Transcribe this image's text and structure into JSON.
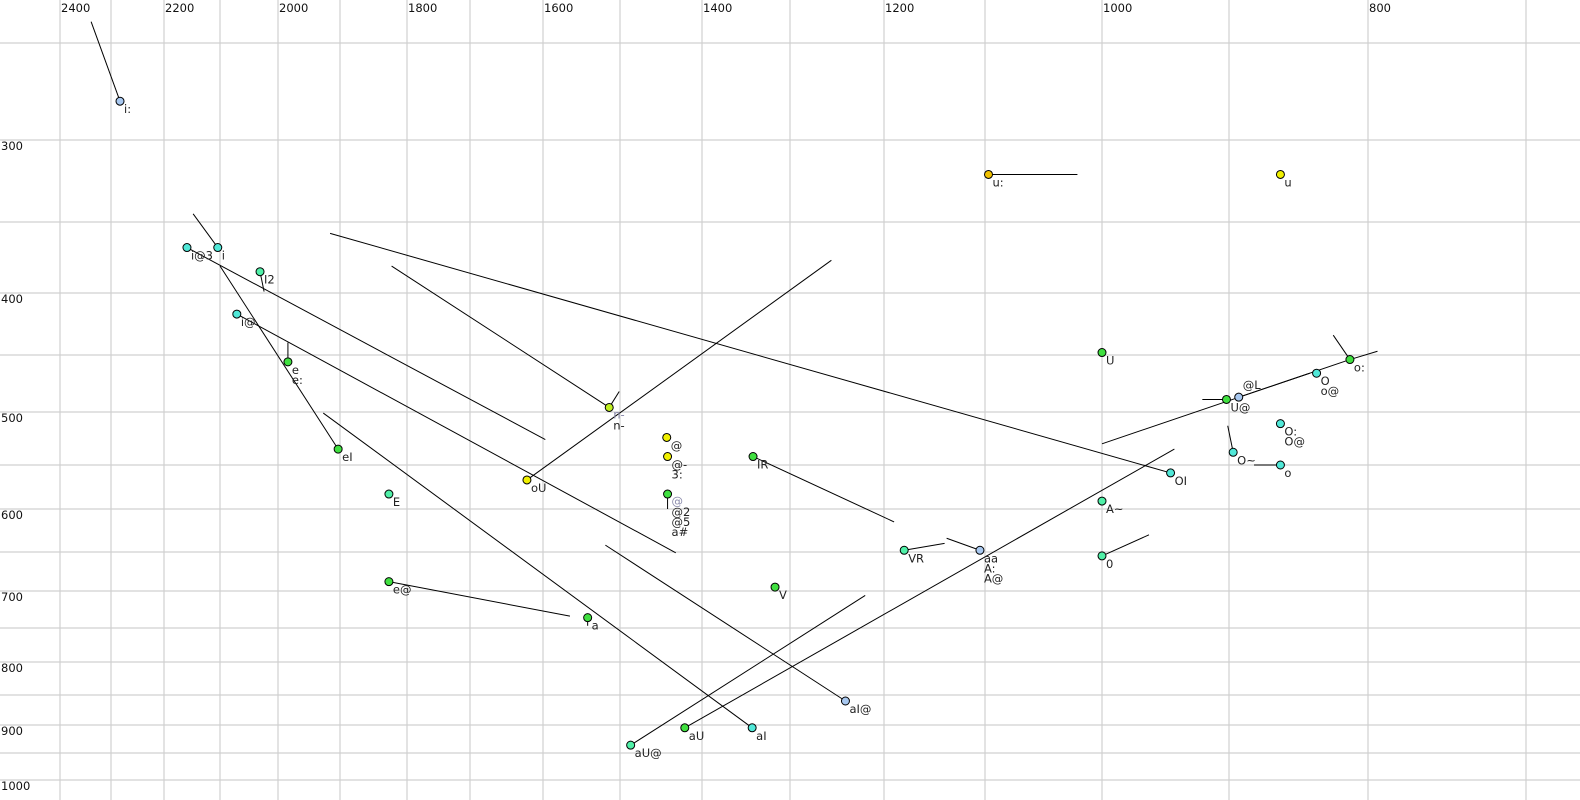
{
  "chart_data": {
    "type": "scatter",
    "title": "",
    "xlabel": "",
    "ylabel": "",
    "x_axis": {
      "reversed": true,
      "position": "top",
      "ticks": [
        2400,
        2200,
        2000,
        1800,
        1600,
        1400,
        1200,
        1000,
        800
      ],
      "grid": [
        2400,
        2300,
        2200,
        2100,
        2000,
        1900,
        1800,
        1700,
        1600,
        1500,
        1400,
        1300,
        1200,
        1100,
        1000,
        900,
        800,
        700
      ]
    },
    "y_axis": {
      "reversed": false,
      "position": "left",
      "ticks": [
        300,
        400,
        500,
        600,
        700,
        800,
        900,
        1000
      ],
      "grid": [
        250,
        300,
        350,
        400,
        450,
        500,
        550,
        600,
        650,
        700,
        750,
        800,
        850,
        900,
        950,
        1000
      ]
    },
    "grid": true,
    "colors": {
      "blue": "#a8c8f0",
      "cyan": "#50e8d8",
      "mint": "#50f0a8",
      "green": "#40e040",
      "lime": "#c0f020",
      "yellow": "#f0f000",
      "orange": "#f0c000"
    },
    "points": [
      {
        "labels": [
          "i:"
        ],
        "f2": 2283,
        "f1": 280,
        "color": "blue",
        "tails": [
          [
            2339,
            239
          ]
        ]
      },
      {
        "labels": [
          "i@3"
        ],
        "f2": 2159,
        "f1": 368,
        "color": "cyan",
        "tails": [
          [
            1597,
            526
          ]
        ]
      },
      {
        "labels": [
          "i"
        ],
        "f2": 2104,
        "f1": 368,
        "color": "cyan",
        "tails": [
          [
            2148,
            345
          ]
        ]
      },
      {
        "labels": [
          "I2"
        ],
        "f2": 2031,
        "f1": 385,
        "color": "mint",
        "tails": [
          [
            2024,
            399
          ]
        ]
      },
      {
        "labels": [
          "i@"
        ],
        "f2": 2071,
        "f1": 417,
        "color": "cyan",
        "tails": [
          [
            1432,
            651
          ]
        ]
      },
      {
        "labels": [
          "e",
          "e:"
        ],
        "f2": 1984,
        "f1": 456,
        "color": "green",
        "tails": [
          [
            1984,
            440
          ]
        ]
      },
      {
        "labels": [
          "eI"
        ],
        "f2": 1903,
        "f1": 535,
        "color": "green",
        "tails": [
          [
            2100,
            381
          ]
        ]
      },
      {
        "labels": [
          "E"
        ],
        "f2": 1827,
        "f1": 583,
        "color": "mint",
        "tails": []
      },
      {
        "labels": [
          "e@"
        ],
        "f2": 1827,
        "f1": 688,
        "color": "green",
        "tails": [
          [
            1565,
            734
          ]
        ]
      },
      {
        "labels": [
          "a"
        ],
        "f2": 1542,
        "f1": 736,
        "color": "green",
        "tails": [
          [
            1542,
            747
          ]
        ]
      },
      {
        "labels": [
          "aI"
        ],
        "f2": 1343,
        "f1": 905,
        "color": "cyan",
        "tails": [
          [
            1927,
            501
          ]
        ]
      },
      {
        "labels": [
          "oU"
        ],
        "f2": 1622,
        "f1": 567,
        "color": "yellow",
        "tails": [
          [
            1256,
            377
          ]
        ]
      },
      {
        "labels": [
          "n-"
        ],
        "ghost": [
          "n-"
        ],
        "f2": 1514,
        "f1": 496,
        "color": "lime",
        "tails": [
          [
            1501,
            482
          ],
          [
            1823,
            381
          ]
        ]
      },
      {
        "labels": [
          "@"
        ],
        "f2": 1443,
        "f1": 524,
        "color": "yellow",
        "tails": []
      },
      {
        "labels": [
          "@-",
          "3:"
        ],
        "f2": 1442,
        "f1": 542,
        "color": "yellow",
        "tails": []
      },
      {
        "labels": [
          "@2",
          "@5",
          "a#"
        ],
        "ghost": [
          "@"
        ],
        "f2": 1442,
        "f1": 583,
        "color": "green",
        "tails": [
          [
            1442,
            600
          ]
        ]
      },
      {
        "labels": [
          "IR"
        ],
        "f2": 1342,
        "f1": 542,
        "color": "green",
        "tails": [
          [
            1190,
            615
          ]
        ]
      },
      {
        "labels": [
          "V"
        ],
        "f2": 1317,
        "f1": 695,
        "color": "green",
        "tails": []
      },
      {
        "labels": [
          "VR"
        ],
        "f2": 1180,
        "f1": 648,
        "color": "mint",
        "tails": [
          [
            1140,
            640
          ]
        ]
      },
      {
        "labels": [
          "aa",
          "A:",
          "A@"
        ],
        "f2": 1105,
        "f1": 648,
        "color": "blue",
        "tails": [
          [
            1138,
            634
          ]
        ]
      },
      {
        "labels": [
          "aU@"
        ],
        "f2": 1487,
        "f1": 936,
        "color": "mint",
        "tails": [
          [
            1220,
            706
          ]
        ]
      },
      {
        "labels": [
          "aU"
        ],
        "f2": 1421,
        "f1": 905,
        "color": "green",
        "tails": [
          [
            943,
            535
          ]
        ]
      },
      {
        "labels": [
          "aI@"
        ],
        "f2": 1241,
        "f1": 860,
        "color": "blue",
        "tails": [
          [
            1519,
            642
          ]
        ]
      },
      {
        "labels": [
          "u:"
        ],
        "f2": 1097,
        "f1": 321,
        "color": "orange",
        "tails": [
          [
            1021,
            321
          ]
        ]
      },
      {
        "labels": [
          "u"
        ],
        "f2": 863,
        "f1": 321,
        "color": "yellow",
        "tails": []
      },
      {
        "labels": [
          "U"
        ],
        "f2": 1000,
        "f1": 448,
        "color": "green",
        "tails": []
      },
      {
        "labels": [
          "OI"
        ],
        "f2": 946,
        "f1": 559,
        "color": "cyan",
        "tails": [
          [
            1916,
            358
          ]
        ]
      },
      {
        "labels": [
          "A~"
        ],
        "f2": 1000,
        "f1": 591,
        "color": "mint",
        "tails": []
      },
      {
        "labels": [
          "0"
        ],
        "f2": 1000,
        "f1": 655,
        "color": "mint",
        "tails": [
          [
            963,
            630
          ]
        ]
      },
      {
        "labels": [
          "U@"
        ],
        "f2": 902,
        "f1": 489,
        "color": "green",
        "tails": [
          [
            921,
            489
          ]
        ]
      },
      {
        "labels": [
          "@L"
        ],
        "f2": 893,
        "f1": 487,
        "color": "blue",
        "tails": [
          [
            842,
            466
          ]
        ]
      },
      {
        "labels": [
          "O",
          "o@"
        ],
        "f2": 837,
        "f1": 466,
        "color": "cyan",
        "tails": []
      },
      {
        "labels": [
          "o:"
        ],
        "f2": 813,
        "f1": 454,
        "color": "green",
        "tails": [
          [
            825,
            434
          ],
          [
            1000,
            530
          ],
          [
            794,
            447
          ]
        ]
      },
      {
        "labels": [
          "O:",
          "O@"
        ],
        "f2": 863,
        "f1": 511,
        "color": "cyan",
        "tails": []
      },
      {
        "labels": [
          "O~"
        ],
        "f2": 897,
        "f1": 538,
        "color": "cyan",
        "tails": [
          [
            901,
            513
          ]
        ]
      },
      {
        "labels": [
          "o"
        ],
        "f2": 863,
        "f1": 550,
        "color": "cyan",
        "tails": [
          [
            882,
            550
          ]
        ]
      }
    ]
  }
}
